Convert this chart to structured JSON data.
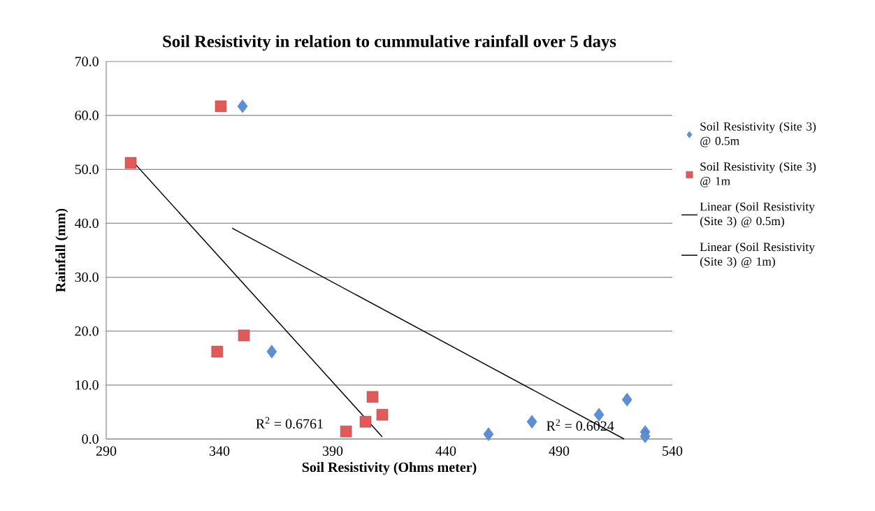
{
  "chart_data": {
    "type": "scatter",
    "title": "Soil Resistivity in relation to cummulative rainfall over 5 days",
    "xlabel": "Soil Resistivity (Ohms meter)",
    "ylabel": "Rainfall (mm)",
    "xlim": [
      290,
      540
    ],
    "xticks": [
      290,
      340,
      390,
      440,
      490,
      540
    ],
    "ylim": [
      0,
      70
    ],
    "yticks": [
      {
        "value": 0,
        "label": "0.0"
      },
      {
        "value": 10,
        "label": "10.0"
      },
      {
        "value": 20,
        "label": "20.0"
      },
      {
        "value": 30,
        "label": "30.0"
      },
      {
        "value": 40,
        "label": "40.0"
      },
      {
        "value": 50,
        "label": "50.0"
      },
      {
        "value": 60,
        "label": "60.0"
      },
      {
        "value": 70,
        "label": "70.0"
      }
    ],
    "grid": "y",
    "legend": "right",
    "series": [
      {
        "name": "Soil Resistivity (Site 3) @ 0.5m",
        "color": "#5b8fd6",
        "marker": "diamond",
        "x": [
          350.2,
          363.1,
          458.8,
          478.0,
          507.6,
          520.0,
          528.0,
          528.0
        ],
        "values": [
          61.7,
          16.2,
          0.9,
          3.2,
          4.5,
          7.3,
          1.3,
          0.5
        ]
      },
      {
        "name": "Soil Resistivity (Site 3) @ 1m",
        "color": "#e05a5a",
        "marker": "square",
        "x": [
          340.6,
          300.8,
          350.8,
          339.0,
          407.6,
          411.9,
          404.5,
          395.9
        ],
        "values": [
          61.7,
          51.2,
          19.2,
          16.2,
          7.8,
          4.5,
          3.2,
          1.4
        ]
      },
      {
        "name": "Linear (Soil Resistivity (Site 3) @ 0.5m)",
        "type": "line",
        "color": "#000000",
        "x": [
          345.6,
          518.7
        ],
        "values": [
          39.1,
          0.0
        ]
      },
      {
        "name": "Linear (Soil Resistivity (Site 3) @ 1m)",
        "type": "line",
        "color": "#000000",
        "x": [
          300.8,
          411.9
        ],
        "values": [
          51.9,
          0.4
        ]
      }
    ],
    "annotations": [
      "R$^{2}$ = 0.6761",
      "R$^{2}$ = 0.6024"
    ]
  }
}
